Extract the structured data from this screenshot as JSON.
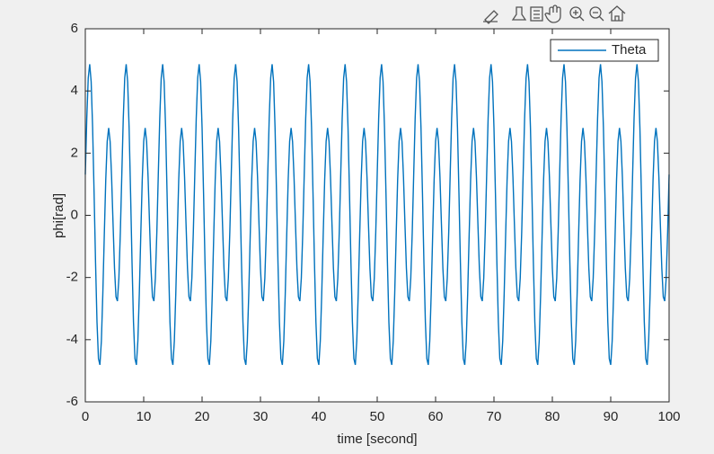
{
  "chart_data": {
    "type": "line",
    "xlabel": "time [second]",
    "ylabel": "phi[rad]",
    "xlim": [
      0,
      100
    ],
    "xticks": [
      0,
      10,
      20,
      30,
      40,
      50,
      60,
      70,
      80,
      90,
      100
    ],
    "ylim": [
      -6,
      6
    ],
    "yticks": [
      -6,
      -4,
      -2,
      0,
      2,
      4,
      6
    ],
    "legend": "northeast",
    "box": true,
    "x": [
      0,
      0.25,
      0.5,
      0.75,
      1,
      1.25,
      1.5,
      1.75,
      2,
      2.25,
      2.5,
      2.75,
      3,
      3.25,
      3.5,
      3.75,
      4,
      4.25,
      4.5,
      4.75,
      5,
      5.25,
      5.5,
      5.75,
      6,
      6.25,
      6.5,
      6.75,
      7,
      7.25,
      7.5,
      7.75,
      8,
      8.25,
      8.5,
      8.75,
      9,
      9.25,
      9.5,
      9.75,
      10,
      10.25,
      10.5,
      10.75,
      11,
      11.25,
      11.5,
      11.75,
      12,
      12.25,
      12.5,
      12.75,
      13,
      13.25,
      13.5,
      13.75,
      14,
      14.25,
      14.5,
      14.75,
      15,
      15.25,
      15.5,
      15.75,
      16,
      16.25,
      16.5,
      16.75,
      17,
      17.25,
      17.5,
      17.75,
      18,
      18.25,
      18.5,
      18.75,
      19,
      19.25,
      19.5,
      19.75,
      20,
      20.25,
      20.5,
      20.75,
      21,
      21.25,
      21.5,
      21.75,
      22,
      22.25,
      22.5,
      22.75,
      23,
      23.25,
      23.5,
      23.75,
      24,
      24.25,
      24.5,
      24.75,
      25,
      25.25,
      25.5,
      25.75,
      26,
      26.25,
      26.5,
      26.75,
      27,
      27.25,
      27.5,
      27.75,
      28,
      28.25,
      28.5,
      28.75,
      29,
      29.25,
      29.5,
      29.75,
      30,
      30.25,
      30.5,
      30.75,
      31,
      31.25,
      31.5,
      31.75,
      32,
      32.25,
      32.5,
      32.75,
      33,
      33.25,
      33.5,
      33.75,
      34,
      34.25,
      34.5,
      34.75,
      35,
      35.25,
      35.5,
      35.75,
      36,
      36.25,
      36.5,
      36.75,
      37,
      37.25,
      37.5,
      37.75,
      38,
      38.25,
      38.5,
      38.75,
      39,
      39.25,
      39.5,
      39.75,
      40,
      40.25,
      40.5,
      40.75,
      41,
      41.25,
      41.5,
      41.75,
      42,
      42.25,
      42.5,
      42.75,
      43,
      43.25,
      43.5,
      43.75,
      44,
      44.25,
      44.5,
      44.75,
      45,
      45.25,
      45.5,
      45.75,
      46,
      46.25,
      46.5,
      46.75,
      47,
      47.25,
      47.5,
      47.75,
      48,
      48.25,
      48.5,
      48.75,
      49,
      49.25,
      49.5,
      49.75,
      50,
      50.25,
      50.5,
      50.75,
      51,
      51.25,
      51.5,
      51.75,
      52,
      52.25,
      52.5,
      52.75,
      53,
      53.25,
      53.5,
      53.75,
      54,
      54.25,
      54.5,
      54.75,
      55,
      55.25,
      55.5,
      55.75,
      56,
      56.25,
      56.5,
      56.75,
      57,
      57.25,
      57.5,
      57.75,
      58,
      58.25,
      58.5,
      58.75,
      59,
      59.25,
      59.5,
      59.75,
      60,
      60.25,
      60.5,
      60.75,
      61,
      61.25,
      61.5,
      61.75,
      62,
      62.25,
      62.5,
      62.75,
      63,
      63.25,
      63.5,
      63.75,
      64,
      64.25,
      64.5,
      64.75,
      65,
      65.25,
      65.5,
      65.75,
      66,
      66.25,
      66.5,
      66.75,
      67,
      67.25,
      67.5,
      67.75,
      68,
      68.25,
      68.5,
      68.75,
      69,
      69.25,
      69.5,
      69.75,
      70,
      70.25,
      70.5,
      70.75,
      71,
      71.25,
      71.5,
      71.75,
      72,
      72.25,
      72.5,
      72.75,
      73,
      73.25,
      73.5,
      73.75,
      74,
      74.25,
      74.5,
      74.75,
      75,
      75.25,
      75.5,
      75.75,
      76,
      76.25,
      76.5,
      76.75,
      77,
      77.25,
      77.5,
      77.75,
      78,
      78.25,
      78.5,
      78.75,
      79,
      79.25,
      79.5,
      79.75,
      80,
      80.25,
      80.5,
      80.75,
      81,
      81.25,
      81.5,
      81.75,
      82,
      82.25,
      82.5,
      82.75,
      83,
      83.25,
      83.5,
      83.75,
      84,
      84.25,
      84.5,
      84.75,
      85,
      85.25,
      85.5,
      85.75,
      86,
      86.25,
      86.5,
      86.75,
      87,
      87.25,
      87.5,
      87.75,
      88,
      88.25,
      88.5,
      88.75,
      89,
      89.25,
      89.5,
      89.75,
      90,
      90.25,
      90.5,
      90.75,
      91,
      91.25,
      91.5,
      91.75,
      92,
      92.25,
      92.5,
      92.75,
      93,
      93.25,
      93.5,
      93.75,
      94,
      94.25,
      94.5,
      94.75,
      95,
      95.25,
      95.5,
      95.75,
      96,
      96.25,
      96.5,
      96.75,
      97,
      97.25,
      97.5,
      97.75,
      98,
      98.25,
      98.5,
      98.75,
      99,
      99.25,
      99.5,
      99.75,
      100
    ],
    "series": [
      {
        "name": "Theta",
        "color": "#0072bd",
        "values": [
          1.31,
          3.12,
          4.42,
          4.86,
          4.3,
          2.82,
          0.73,
          -1.51,
          -3.43,
          -4.61,
          -4.81,
          -4.04,
          -2.51,
          -0.63,
          1.14,
          2.38,
          2.81,
          2.37,
          1.23,
          -0.27,
          -1.7,
          -2.62,
          -2.76,
          -2.02,
          -0.55,
          1.31,
          3.12,
          4.42,
          4.86,
          4.3,
          2.82,
          0.73,
          -1.51,
          -3.43,
          -4.61,
          -4.81,
          -4.04,
          -2.51,
          -0.63,
          1.14,
          2.38,
          2.81,
          2.37,
          1.23,
          -0.27,
          -1.7,
          -2.62,
          -2.76,
          -2.02,
          -0.55,
          1.31,
          3.12,
          4.42,
          4.86,
          4.3,
          2.82,
          0.73,
          -1.51,
          -3.43,
          -4.61,
          -4.81,
          -4.04,
          -2.51,
          -0.63,
          1.14,
          2.38,
          2.81,
          2.37,
          1.23,
          -0.27,
          -1.7,
          -2.62,
          -2.76,
          -2.02,
          -0.55,
          1.31,
          3.12,
          4.42,
          4.86,
          4.3,
          2.82,
          0.73,
          -1.51,
          -3.43,
          -4.61,
          -4.81,
          -4.04,
          -2.51,
          -0.63,
          1.14,
          2.38,
          2.81,
          2.37,
          1.23,
          -0.27,
          -1.7,
          -2.62,
          -2.76,
          -2.02,
          -0.55,
          1.31,
          3.12,
          4.42,
          4.86,
          4.3,
          2.82,
          0.73,
          -1.51,
          -3.43,
          -4.61,
          -4.81,
          -4.04,
          -2.51,
          -0.63,
          1.14,
          2.38,
          2.81,
          2.37,
          1.23,
          -0.27,
          -1.7,
          -2.62,
          -2.76,
          -2.02,
          -0.55,
          1.31,
          3.12,
          4.42,
          4.86,
          4.3,
          2.82,
          0.73,
          -1.51,
          -3.43,
          -4.61,
          -4.81,
          -4.04,
          -2.51,
          -0.63,
          1.14,
          2.38,
          2.81,
          2.37,
          1.23,
          -0.27,
          -1.7,
          -2.62,
          -2.76,
          -2.02,
          -0.55,
          1.31,
          3.12,
          4.42,
          4.86,
          4.3,
          2.82,
          0.73,
          -1.51,
          -3.43,
          -4.61,
          -4.81,
          -4.04,
          -2.51,
          -0.63,
          1.14,
          2.38,
          2.81,
          2.37,
          1.23,
          -0.27,
          -1.7,
          -2.62,
          -2.76,
          -2.02,
          -0.55,
          1.31,
          3.12,
          4.42,
          4.86,
          4.3,
          2.82,
          0.73,
          -1.51,
          -3.43,
          -4.61,
          -4.81,
          -4.04,
          -2.51,
          -0.63,
          1.14,
          2.38,
          2.81,
          2.37,
          1.23,
          -0.27,
          -1.7,
          -2.62,
          -2.76,
          -2.02,
          -0.55,
          1.31,
          3.12,
          4.42,
          4.86,
          4.3,
          2.82,
          0.73,
          -1.51,
          -3.43,
          -4.61,
          -4.81,
          -4.04,
          -2.51,
          -0.63,
          1.14,
          2.38,
          2.81,
          2.37,
          1.23,
          -0.27,
          -1.7,
          -2.62,
          -2.76,
          -2.02,
          -0.55,
          1.31,
          3.12,
          4.42,
          4.86,
          4.3,
          2.82,
          0.73,
          -1.51,
          -3.43,
          -4.61,
          -4.81,
          -4.04,
          -2.51,
          -0.63,
          1.14,
          2.38,
          2.81,
          2.37,
          1.23,
          -0.27,
          -1.7,
          -2.62,
          -2.76,
          -2.02,
          -0.55,
          1.31,
          3.12,
          4.42,
          4.86,
          4.3,
          2.82,
          0.73,
          -1.51,
          -3.43,
          -4.61,
          -4.81,
          -4.04,
          -2.51,
          -0.63,
          1.14,
          2.38,
          2.81,
          2.37,
          1.23,
          -0.27,
          -1.7,
          -2.62,
          -2.76,
          -2.02,
          -0.55,
          1.31,
          3.12,
          4.42,
          4.86,
          4.3,
          2.82,
          0.73,
          -1.51,
          -3.43,
          -4.61,
          -4.81,
          -4.04,
          -2.51,
          -0.63,
          1.14,
          2.38,
          2.81,
          2.37,
          1.23,
          -0.27,
          -1.7,
          -2.62,
          -2.76,
          -2.02,
          -0.55,
          1.31,
          3.12,
          4.42,
          4.86,
          4.3,
          2.82,
          0.73,
          -1.51,
          -3.43,
          -4.61,
          -4.81,
          -4.04,
          -2.51,
          -0.63,
          1.14,
          2.38,
          2.81,
          2.37,
          1.23,
          -0.27,
          -1.7,
          -2.62,
          -2.76,
          -2.02,
          -0.55,
          1.31,
          3.12,
          4.42,
          4.86,
          4.3,
          2.82,
          0.73,
          -1.51,
          -3.43,
          -4.61,
          -4.81,
          -4.04,
          -2.51,
          -0.63,
          1.14,
          2.38,
          2.81,
          2.37,
          1.23,
          -0.27,
          -1.7,
          -2.62,
          -2.76,
          -2.02,
          -0.55,
          1.31,
          3.12,
          4.42,
          4.86,
          4.3,
          2.82,
          0.73,
          -1.51,
          -3.43,
          -4.61,
          -4.81,
          -4.04,
          -2.51,
          -0.63,
          1.14,
          2.38,
          2.81,
          2.37,
          1.23,
          -0.27,
          -1.7,
          -2.62,
          -2.76,
          -2.02,
          -0.55,
          1.31,
          3.12,
          4.42,
          4.86,
          4.3,
          2.82,
          0.73,
          -1.51,
          -3.43,
          -4.61,
          -4.81,
          -4.04,
          -2.51,
          -0.63,
          1.14,
          2.38,
          2.81,
          2.37,
          1.23,
          -0.27,
          -1.7,
          -2.62,
          -2.76,
          -2.02,
          -0.55,
          1.31
        ]
      }
    ]
  }
}
